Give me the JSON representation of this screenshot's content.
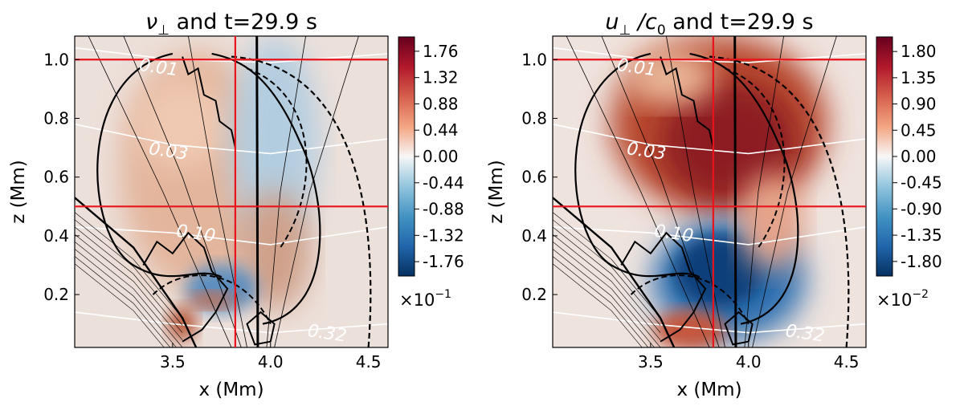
{
  "chart_data": [
    {
      "type": "heatmap",
      "title_var": "ν",
      "title_sub": "⊥",
      "title_rest": " and t=29.9 s",
      "xlabel": "x (Mm)",
      "ylabel": "z (Mm)",
      "xlim": [
        3.0,
        4.6
      ],
      "ylim": [
        0.02,
        1.08
      ],
      "xticks": [
        3.5,
        4.0,
        4.5
      ],
      "xtick_labels": [
        "3.5",
        "4.0",
        "4.5"
      ],
      "yticks": [
        0.2,
        0.4,
        0.6,
        0.8,
        1.0
      ],
      "ytick_labels": [
        "0.2",
        "0.4",
        "0.6",
        "0.8",
        "1.0"
      ],
      "colorbar": {
        "ticks": [
          1.76,
          1.32,
          0.88,
          0.44,
          0.0,
          -0.44,
          -0.88,
          -1.32,
          -1.76
        ],
        "tick_labels": [
          "1.76",
          "1.32",
          "0.88",
          "0.44",
          "0.00",
          "-0.44",
          "-0.88",
          "-1.32",
          "-1.76"
        ],
        "vmin": -2.0,
        "vmax": 2.0,
        "multiplier": "×10",
        "exponent": "−1",
        "cmap": "RdBu_r"
      },
      "red_lines": {
        "x": 3.82,
        "y": [
          1.0,
          0.5
        ]
      },
      "contour_labels": [
        {
          "text": "0.01",
          "x": 3.33,
          "z": 0.985
        },
        {
          "text": "0.03",
          "x": 3.38,
          "z": 0.7
        },
        {
          "text": "0.10",
          "x": 3.52,
          "z": 0.42
        },
        {
          "text": "0.32",
          "x": 4.19,
          "z": 0.08
        }
      ],
      "style": "nu"
    },
    {
      "type": "heatmap",
      "title_var": "u",
      "title_sub": "⊥",
      "title_rest": " /c",
      "title_sub2": "0",
      "title_tail": " and t=29.9 s",
      "xlabel": "x (Mm)",
      "ylabel": "z (Mm)",
      "xlim": [
        3.0,
        4.6
      ],
      "ylim": [
        0.02,
        1.08
      ],
      "xticks": [
        3.5,
        4.0,
        4.5
      ],
      "xtick_labels": [
        "3.5",
        "4.0",
        "4.5"
      ],
      "yticks": [
        0.2,
        0.4,
        0.6,
        0.8,
        1.0
      ],
      "ytick_labels": [
        "0.2",
        "0.4",
        "0.6",
        "0.8",
        "1.0"
      ],
      "colorbar": {
        "ticks": [
          1.8,
          1.35,
          0.9,
          0.45,
          0.0,
          -0.45,
          -0.9,
          -1.35,
          -1.8
        ],
        "tick_labels": [
          "1.80",
          "1.35",
          "0.90",
          "0.45",
          "0.00",
          "-0.45",
          "-0.90",
          "-1.35",
          "-1.80"
        ],
        "vmin": -2.05,
        "vmax": 2.05,
        "multiplier": "×10",
        "exponent": "−2",
        "cmap": "RdBu_r"
      },
      "red_lines": {
        "x": 3.82,
        "y": [
          1.0,
          0.5
        ]
      },
      "contour_labels": [
        {
          "text": "0.01",
          "x": 3.33,
          "z": 0.985
        },
        {
          "text": "0.03",
          "x": 3.38,
          "z": 0.7
        },
        {
          "text": "0.10",
          "x": 3.52,
          "z": 0.42
        },
        {
          "text": "0.32",
          "x": 4.19,
          "z": 0.08
        }
      ],
      "style": "u"
    }
  ]
}
